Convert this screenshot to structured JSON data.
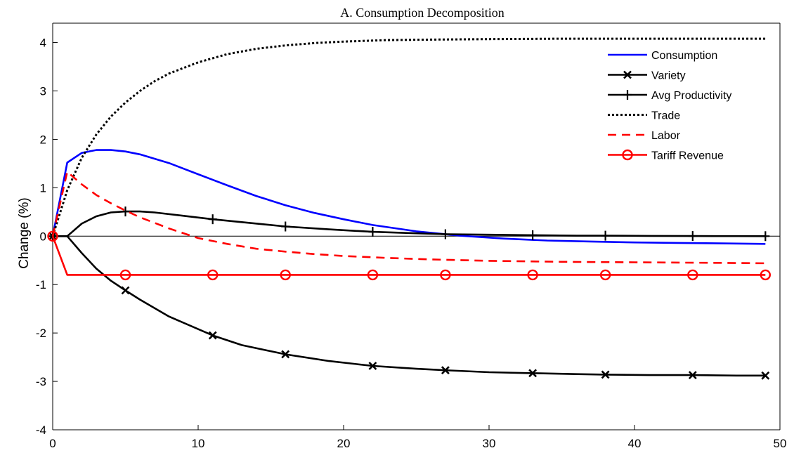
{
  "chart_data": {
    "type": "line",
    "title": "A. Consumption Decomposition",
    "xlabel": "",
    "ylabel": "Change (%)",
    "xlim": [
      0,
      50
    ],
    "ylim": [
      -4,
      4.4
    ],
    "xticks": [
      0,
      10,
      20,
      30,
      40,
      50
    ],
    "xtick_labels": [
      "0",
      "10",
      "20",
      "30",
      "40",
      "50"
    ],
    "yticks": [
      -4,
      -3,
      -2,
      -1,
      0,
      1,
      2,
      3,
      4
    ],
    "ytick_labels": [
      "-4",
      "-3",
      "-2",
      "-1",
      "0",
      "1",
      "2",
      "3",
      "4"
    ],
    "zero_line": true,
    "grid": false,
    "legend_position": "top-right",
    "series": [
      {
        "name": "Consumption",
        "color": "#0000ff",
        "style": "solid",
        "marker": "none",
        "x": [
          0,
          1,
          2,
          3,
          4,
          5,
          6,
          8,
          10,
          12,
          14,
          16,
          18,
          20,
          22,
          25,
          28,
          31,
          34,
          37,
          40,
          43,
          46,
          49
        ],
        "y": [
          0,
          1.52,
          1.72,
          1.78,
          1.78,
          1.75,
          1.69,
          1.51,
          1.28,
          1.05,
          0.83,
          0.64,
          0.48,
          0.35,
          0.23,
          0.1,
          0.01,
          -0.05,
          -0.09,
          -0.11,
          -0.13,
          -0.14,
          -0.15,
          -0.16
        ]
      },
      {
        "name": "Variety",
        "color": "#000000",
        "style": "solid",
        "marker": "x",
        "marker_x": [
          0,
          5,
          11,
          16,
          22,
          27,
          33,
          38,
          44,
          49
        ],
        "x": [
          0,
          1,
          2,
          3,
          4,
          5,
          6,
          8,
          11,
          13,
          16,
          19,
          22,
          25,
          27,
          30,
          33,
          36,
          38,
          41,
          44,
          47,
          49
        ],
        "y": [
          0,
          0,
          -0.35,
          -0.67,
          -0.92,
          -1.12,
          -1.31,
          -1.66,
          -2.05,
          -2.25,
          -2.44,
          -2.58,
          -2.68,
          -2.74,
          -2.77,
          -2.81,
          -2.83,
          -2.85,
          -2.86,
          -2.87,
          -2.87,
          -2.88,
          -2.88
        ]
      },
      {
        "name": "Avg Productivity",
        "color": "#000000",
        "style": "solid",
        "marker": "+",
        "marker_x": [
          0,
          5,
          11,
          16,
          22,
          27,
          33,
          38,
          44,
          49
        ],
        "x": [
          0,
          1,
          2,
          3,
          4,
          5,
          6,
          7,
          9,
          11,
          13,
          16,
          19,
          22,
          25,
          27,
          30,
          33,
          36,
          38,
          41,
          44,
          47,
          49
        ],
        "y": [
          0,
          0,
          0.26,
          0.41,
          0.49,
          0.51,
          0.51,
          0.49,
          0.42,
          0.35,
          0.29,
          0.2,
          0.14,
          0.09,
          0.06,
          0.04,
          0.03,
          0.02,
          0.01,
          0.01,
          0.005,
          0.003,
          0.001,
          0.0
        ]
      },
      {
        "name": "Trade",
        "color": "#000000",
        "style": "dotted",
        "marker": "none",
        "x": [
          0,
          1,
          2,
          3,
          4,
          5,
          6,
          7,
          8,
          10,
          12,
          14,
          16,
          18,
          20,
          23,
          26,
          30,
          35,
          40,
          45,
          49
        ],
        "y": [
          0,
          0.95,
          1.62,
          2.1,
          2.47,
          2.76,
          3.0,
          3.2,
          3.36,
          3.59,
          3.76,
          3.87,
          3.94,
          3.99,
          4.02,
          4.05,
          4.06,
          4.07,
          4.08,
          4.08,
          4.08,
          4.08
        ]
      },
      {
        "name": "Labor",
        "color": "#ff0000",
        "style": "dashed",
        "marker": "none",
        "x": [
          0,
          1,
          2,
          3,
          4,
          5,
          6,
          8,
          10,
          12,
          14,
          16,
          18,
          20,
          23,
          26,
          30,
          35,
          40,
          45,
          49
        ],
        "y": [
          0,
          1.33,
          1.07,
          0.85,
          0.68,
          0.53,
          0.39,
          0.16,
          -0.04,
          -0.16,
          -0.26,
          -0.32,
          -0.37,
          -0.41,
          -0.45,
          -0.48,
          -0.51,
          -0.53,
          -0.54,
          -0.55,
          -0.56
        ]
      },
      {
        "name": "Tariff Revenue",
        "color": "#ff0000",
        "style": "solid",
        "marker": "o",
        "marker_x": [
          0,
          5,
          11,
          16,
          22,
          27,
          33,
          38,
          44,
          49
        ],
        "x": [
          0,
          1,
          5,
          11,
          16,
          22,
          27,
          33,
          38,
          44,
          49
        ],
        "y": [
          0,
          -0.8,
          -0.8,
          -0.8,
          -0.8,
          -0.8,
          -0.8,
          -0.8,
          -0.8,
          -0.8,
          -0.8
        ]
      }
    ]
  }
}
